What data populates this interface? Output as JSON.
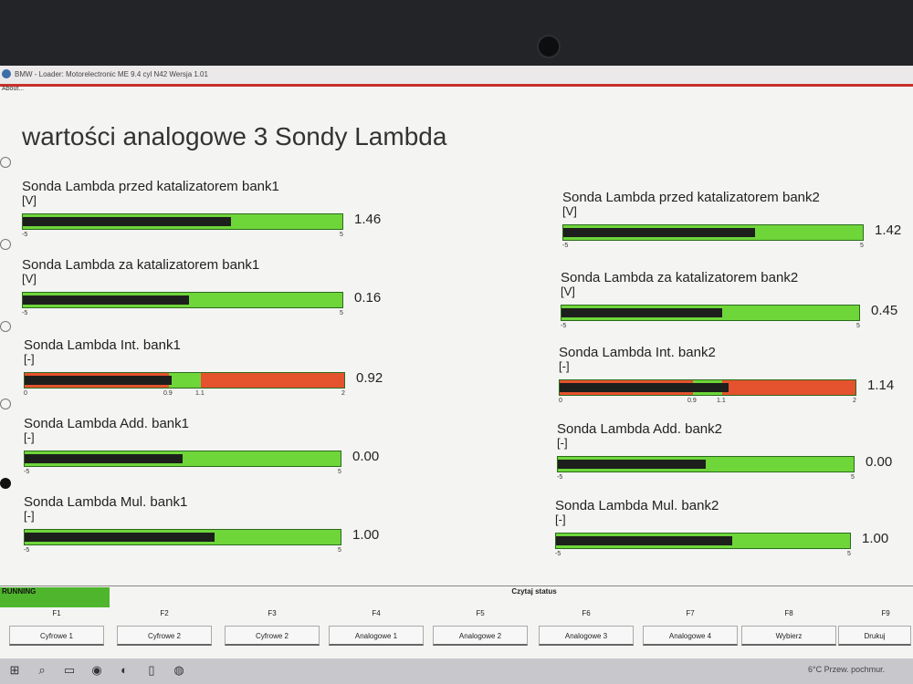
{
  "window": {
    "title": "BMW - Loader: Motorelectronic ME 9.4 cyl N42 Wersja 1.01",
    "menu": "About..."
  },
  "page_title": "wartości analogowe 3 Sondy Lambda",
  "widgets": [
    {
      "label": "Sonda Lambda przed katalizatorem bank1",
      "unit": "[V]",
      "value_text": "1.46",
      "value": 1.46,
      "min": -5,
      "max": 5,
      "min_label": "-5",
      "max_label": "5",
      "type": "linear",
      "fill_fraction": 0.65
    },
    {
      "label": "Sonda Lambda za katalizatorem bank1",
      "unit": "[V]",
      "value_text": "0.16",
      "value": 0.16,
      "min": -5,
      "max": 5,
      "min_label": "-5",
      "max_label": "5",
      "type": "linear",
      "fill_fraction": 0.52
    },
    {
      "label": "Sonda Lambda Int. bank1",
      "unit": "[-]",
      "value_text": "0.92",
      "value": 0.92,
      "min": 0,
      "max": 2,
      "min_label": "0",
      "max_label": "2",
      "t1_label": "0.9",
      "t2_label": "1.1",
      "type": "zoned",
      "fill_fraction": 0.46
    },
    {
      "label": "Sonda Lambda Add. bank1",
      "unit": "[-]",
      "value_text": "0.00",
      "value": 0.0,
      "min": -5,
      "max": 5,
      "min_label": "-5",
      "max_label": "5",
      "type": "linear",
      "fill_fraction": 0.5
    },
    {
      "label": "Sonda Lambda Mul. bank1",
      "unit": "[-]",
      "value_text": "1.00",
      "value": 1.0,
      "min": -5,
      "max": 5,
      "min_label": "-5",
      "max_label": "5",
      "type": "linear",
      "fill_fraction": 0.6
    },
    {
      "label": "Sonda Lambda przed katalizatorem bank2",
      "unit": "[V]",
      "value_text": "1.42",
      "value": 1.42,
      "min": -5,
      "max": 5,
      "min_label": "-5",
      "max_label": "5",
      "type": "linear",
      "fill_fraction": 0.64
    },
    {
      "label": "Sonda Lambda za katalizatorem bank2",
      "unit": "[V]",
      "value_text": "0.45",
      "value": 0.45,
      "min": -5,
      "max": 5,
      "min_label": "-5",
      "max_label": "5",
      "type": "linear",
      "fill_fraction": 0.54
    },
    {
      "label": "Sonda Lambda Int. bank2",
      "unit": "[-]",
      "value_text": "1.14",
      "value": 1.14,
      "min": 0,
      "max": 2,
      "min_label": "0",
      "max_label": "2",
      "t1_label": "0.9",
      "t2_label": "1.1",
      "type": "zoned",
      "fill_fraction": 0.57
    },
    {
      "label": "Sonda Lambda Add. bank2",
      "unit": "[-]",
      "value_text": "0.00",
      "value": 0.0,
      "min": -5,
      "max": 5,
      "min_label": "-5",
      "max_label": "5",
      "type": "linear",
      "fill_fraction": 0.5
    },
    {
      "label": "Sonda Lambda Mul. bank2",
      "unit": "[-]",
      "value_text": "1.00",
      "value": 1.0,
      "min": -5,
      "max": 5,
      "min_label": "-5",
      "max_label": "5",
      "type": "linear",
      "fill_fraction": 0.6
    }
  ],
  "status": {
    "running": "RUNNING",
    "czytaj": "Czytaj status"
  },
  "fkeys": [
    {
      "key": "F1",
      "label": "Cyfrowe 1"
    },
    {
      "key": "F2",
      "label": "Cyfrowe 2"
    },
    {
      "key": "F3",
      "label": "Cyfrowe 2"
    },
    {
      "key": "F4",
      "label": "Analogowe 1"
    },
    {
      "key": "F5",
      "label": "Analogowe 2"
    },
    {
      "key": "F6",
      "label": "Analogowe 3"
    },
    {
      "key": "F7",
      "label": "Analogowe 4"
    },
    {
      "key": "F8",
      "label": "Wybierz"
    },
    {
      "key": "F9",
      "label": "Drukuj"
    }
  ],
  "taskbar": {
    "weather": "6°C  Przew. pochmur."
  },
  "colors": {
    "bar_green": "#6fd63a",
    "bar_fill": "#1d1f1c",
    "zone_red": "#e5522e",
    "running_green": "#4fb52d"
  }
}
